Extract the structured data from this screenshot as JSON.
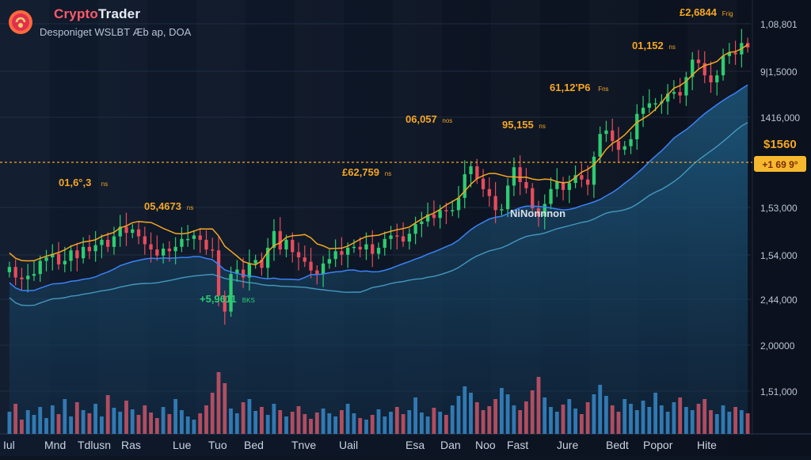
{
  "app": {
    "title_part1": "Crypto",
    "title_part2": "Trader",
    "subtitle": "Desponiget  WSLBT Æb ap, DOA"
  },
  "colors": {
    "background": "#0d1422",
    "candle_up": "#2ecc71",
    "candle_down": "#e74c5c",
    "volume_up": "#3b8fd0",
    "volume_down": "#d9576a",
    "ma_orange": "#f5a623",
    "ma_blue": "#3b82f6",
    "ma_teal": "#4aa3c9",
    "price_line": "#f5a623",
    "annotation": "#f5a623",
    "annotation_green": "#2ecc71",
    "badge_bg": "#f5b82e"
  },
  "chart_data": {
    "type": "candlestick",
    "title": "",
    "y_ticks": [
      "1,08,801",
      "9|1,5000",
      "1416,000",
      "1,53,000",
      "1,54,000",
      "2,44,000",
      "2,00000",
      "1,51,000"
    ],
    "x_ticks": [
      "Iul",
      "Mnd",
      "Tdlusn",
      "Ras",
      "Lue",
      "Tuo",
      "Bed",
      "Tnve",
      "Uail",
      "Esa",
      "Dan",
      "Noo",
      "Fast",
      "Jure",
      "Bedt",
      "Popor",
      "Hite"
    ],
    "current_price_label": "$1560",
    "current_change_label": "+1 69 9°",
    "annotations": [
      {
        "text": "01,6°,3",
        "sub": "ns",
        "color": "orange"
      },
      {
        "text": "05,4673",
        "sub": "ns",
        "color": "orange"
      },
      {
        "text": "£62,759",
        "sub": "ns",
        "color": "orange"
      },
      {
        "text": "06,057",
        "sub": "nos",
        "color": "orange"
      },
      {
        "text": "95,155",
        "sub": "ns",
        "color": "orange"
      },
      {
        "text": "61,12'P6",
        "sub": "Fns",
        "color": "orange"
      },
      {
        "text": "01,152",
        "sub": "ns",
        "color": "orange"
      },
      {
        "text": "£2,6844",
        "sub": "Frig",
        "color": "orange"
      },
      {
        "text": "+5,9611",
        "sub": "BKS",
        "color": "green"
      },
      {
        "text": "NiNonnnon",
        "sub": "",
        "color": "white"
      }
    ],
    "close": [
      23.3,
      22.1,
      21.9,
      22.3,
      22.5,
      24.0,
      24.4,
      24.8,
      23.6,
      24.0,
      25.2,
      24.3,
      25.6,
      25.1,
      25.8,
      26.4,
      25.6,
      26.8,
      27.9,
      27.2,
      27.6,
      26.8,
      25.9,
      25.3,
      24.6,
      25.4,
      25.1,
      25.6,
      26.5,
      26.5,
      26.9,
      26.4,
      25.3,
      25.2,
      20.0,
      18.2,
      22.5,
      23.0,
      22.1,
      23.7,
      24.1,
      23.2,
      25.5,
      27.4,
      25.3,
      26.4,
      25.0,
      24.4,
      23.9,
      22.9,
      22.5,
      23.7,
      24.2,
      25.1,
      24.7,
      25.5,
      25.6,
      25.3,
      25.9,
      24.8,
      25.5,
      26.5,
      26.9,
      26.8,
      26.2,
      27.1,
      28.2,
      28.5,
      29.3,
      28.9,
      29.8,
      29.7,
      29.8,
      31.2,
      33.9,
      34.8,
      33.4,
      32.2,
      31.4,
      29.8,
      29.9,
      32.6,
      34.7,
      33.0,
      32.3,
      30.0,
      29.1,
      30.5,
      32.2,
      33.0,
      32.1,
      32.9,
      33.8,
      33.3,
      32.7,
      35.9,
      38.5,
      38.9,
      37.7,
      36.7,
      37.1,
      37.9,
      40.8,
      41.5,
      42.0,
      42.0,
      42.2,
      43.1,
      43.3,
      42.9,
      45.0,
      47.0,
      46.6,
      45.2,
      44.4,
      45.2,
      47.4,
      47.8,
      47.6,
      48.9,
      48.4
    ],
    "volume": [
      0.28,
      0.38,
      0.18,
      0.3,
      0.24,
      0.34,
      0.2,
      0.36,
      0.25,
      0.44,
      0.22,
      0.4,
      0.3,
      0.26,
      0.38,
      0.22,
      0.49,
      0.33,
      0.28,
      0.42,
      0.31,
      0.24,
      0.36,
      0.27,
      0.2,
      0.34,
      0.25,
      0.44,
      0.3,
      0.22,
      0.18,
      0.26,
      0.36,
      0.52,
      0.78,
      0.64,
      0.32,
      0.26,
      0.4,
      0.44,
      0.29,
      0.34,
      0.24,
      0.38,
      0.3,
      0.22,
      0.28,
      0.35,
      0.25,
      0.19,
      0.27,
      0.32,
      0.26,
      0.22,
      0.3,
      0.38,
      0.26,
      0.2,
      0.18,
      0.24,
      0.31,
      0.22,
      0.28,
      0.34,
      0.25,
      0.3,
      0.46,
      0.27,
      0.22,
      0.33,
      0.28,
      0.24,
      0.36,
      0.48,
      0.6,
      0.52,
      0.4,
      0.3,
      0.35,
      0.44,
      0.58,
      0.5,
      0.36,
      0.3,
      0.41,
      0.55,
      0.72,
      0.46,
      0.34,
      0.28,
      0.37,
      0.44,
      0.32,
      0.25,
      0.4,
      0.5,
      0.62,
      0.48,
      0.36,
      0.28,
      0.44,
      0.38,
      0.3,
      0.42,
      0.34,
      0.52,
      0.36,
      0.28,
      0.4,
      0.46,
      0.34,
      0.3,
      0.38,
      0.44,
      0.3,
      0.25,
      0.36,
      0.28,
      0.34,
      0.3,
      0.26
    ]
  }
}
